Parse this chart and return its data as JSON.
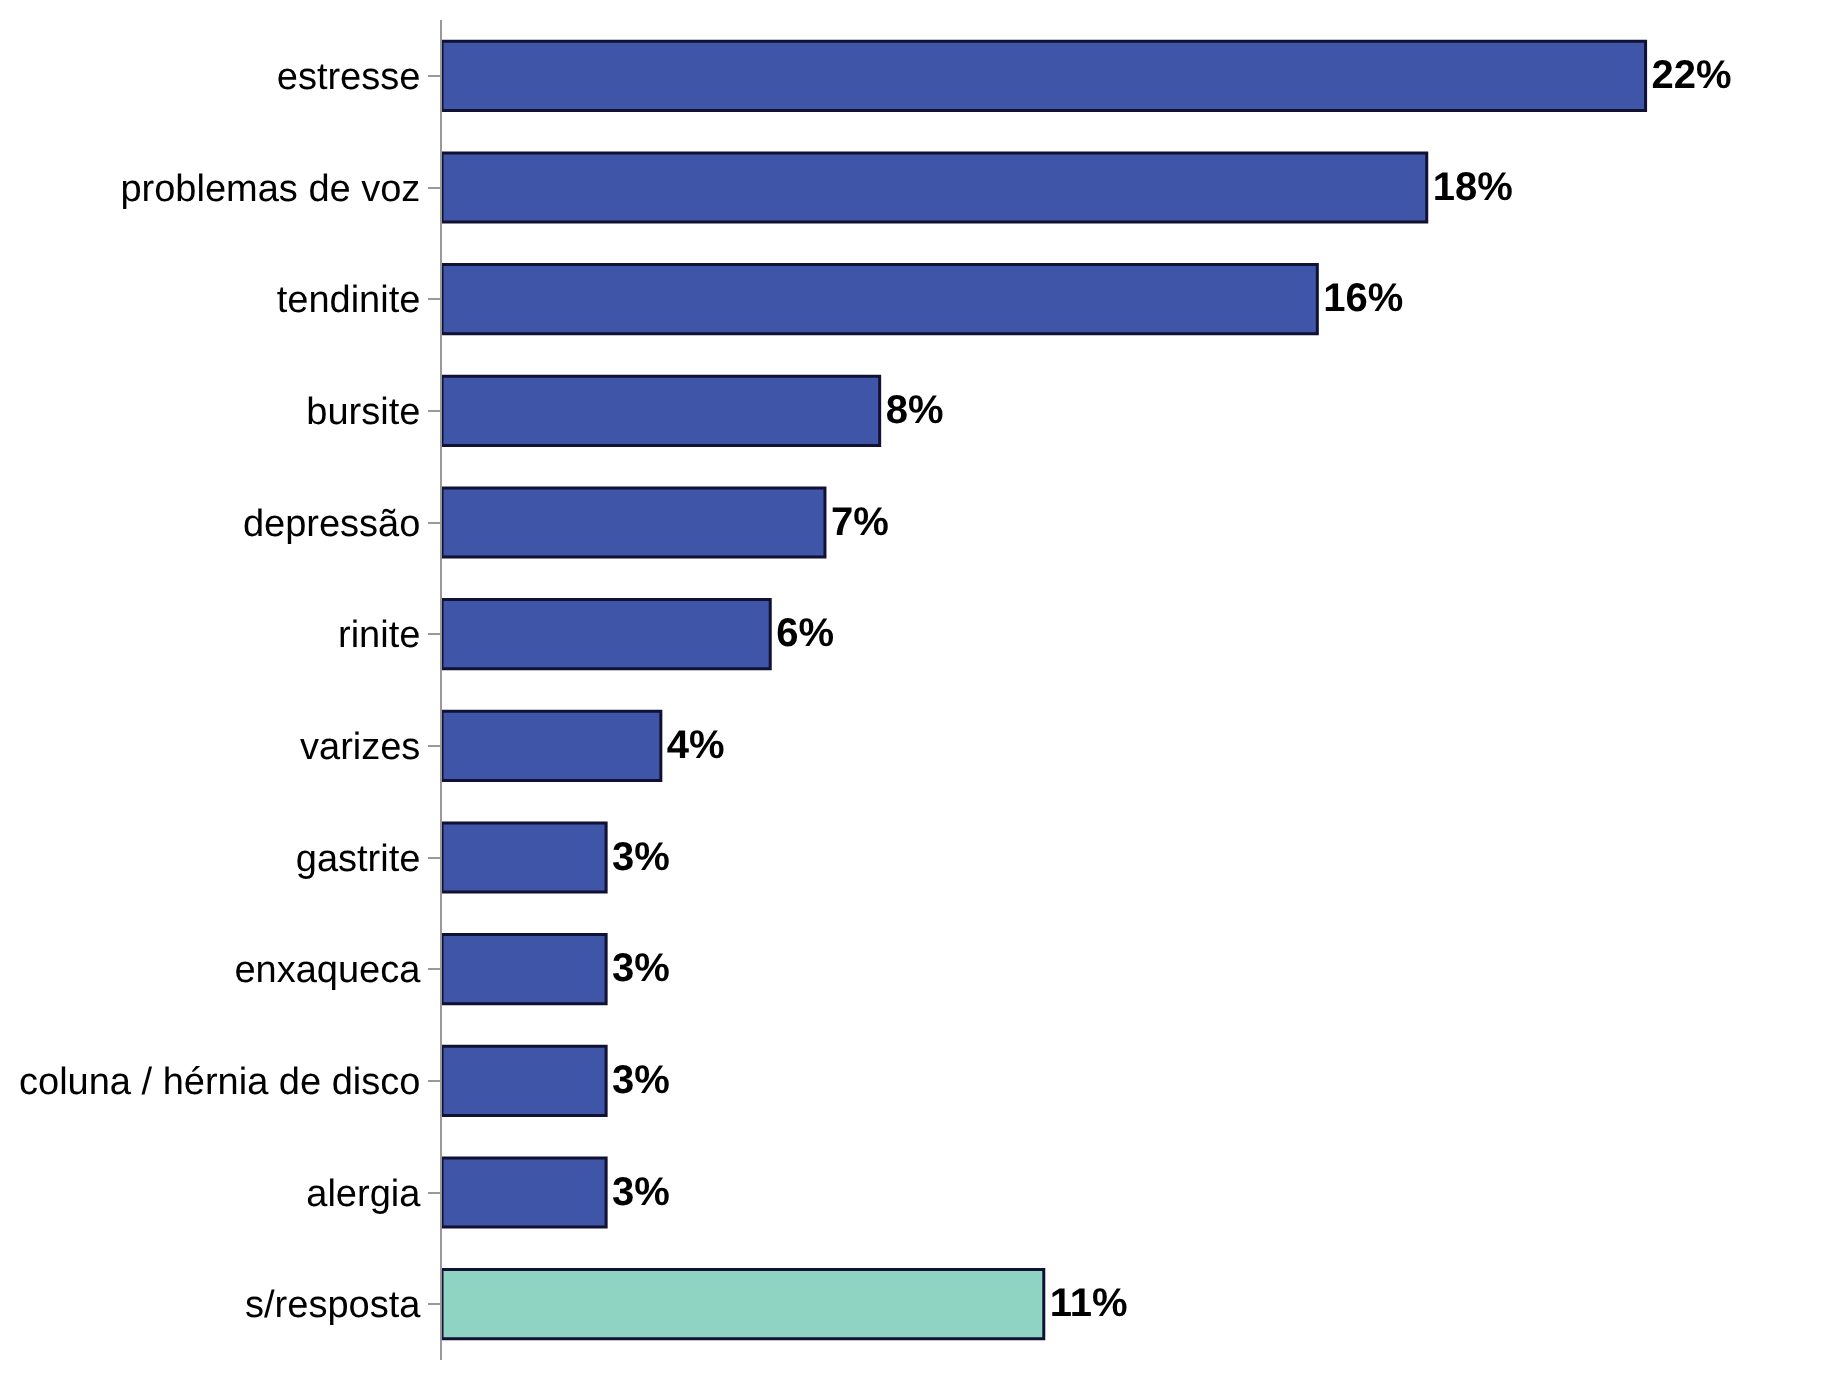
{
  "chart_data": {
    "type": "bar",
    "orientation": "horizontal",
    "categories": [
      "estresse",
      "problemas de voz",
      "tendinite",
      "bursite",
      "depressão",
      "rinite",
      "varizes",
      "gastrite",
      "enxaqueca",
      "coluna / hérnia de disco",
      "alergia",
      "s/resposta"
    ],
    "values": [
      22,
      18,
      16,
      8,
      7,
      6,
      4,
      3,
      3,
      3,
      3,
      11
    ],
    "value_labels": [
      "22%",
      "18%",
      "16%",
      "8%",
      "7%",
      "6%",
      "4%",
      "3%",
      "3%",
      "3%",
      "3%",
      "11%"
    ],
    "colors": [
      "#3e55a8",
      "#3e55a8",
      "#3e55a8",
      "#3e55a8",
      "#3e55a8",
      "#3e55a8",
      "#3e55a8",
      "#3e55a8",
      "#3e55a8",
      "#3e55a8",
      "#3e55a8",
      "#8fd3c3"
    ]
  }
}
